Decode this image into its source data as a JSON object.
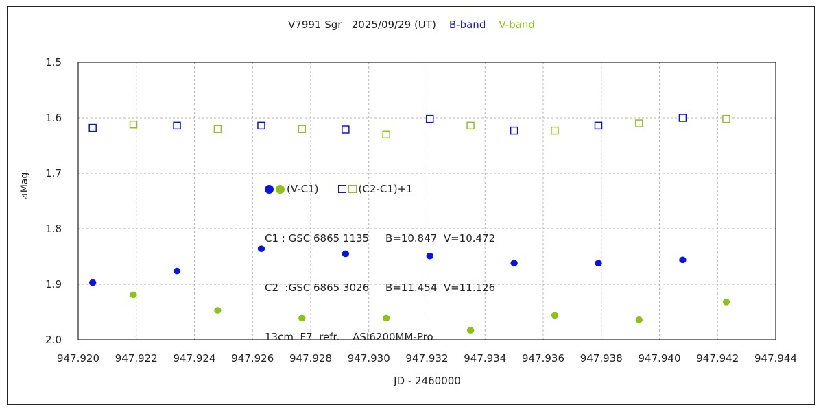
{
  "chart_data": {
    "type": "scatter",
    "title": {
      "main": "V7991 Sgr   2025/09/29 (UT)",
      "b_band": "B-band",
      "v_band": "V-band"
    },
    "xlabel": "JD - 2460000",
    "ylabel": "⊿Mag.",
    "xlim": [
      947.92,
      947.944
    ],
    "ylim": [
      1.5,
      2.0
    ],
    "y_inverted": true,
    "grid": true,
    "x_ticks": [
      "947.920",
      "947.922",
      "947.924",
      "947.926",
      "947.928",
      "947.930",
      "947.932",
      "947.934",
      "947.936",
      "947.938",
      "947.940",
      "947.942",
      "947.944"
    ],
    "y_ticks": [
      "1.5",
      "1.6",
      "1.7",
      "1.8",
      "1.9",
      "2.0"
    ],
    "colors": {
      "b_band": "#0a14e0",
      "v_band": "#8cc21a"
    },
    "series": [
      {
        "name": "(V-C1) B-band",
        "marker": "filled-circle",
        "color": "#0a14e0",
        "x": [
          947.9205,
          947.9234,
          947.9263,
          947.9292,
          947.9321,
          947.935,
          947.9379,
          947.9408
        ],
        "y": [
          1.897,
          1.876,
          1.836,
          1.845,
          1.849,
          1.862,
          1.862,
          1.856
        ]
      },
      {
        "name": "(V-C1) V-band",
        "marker": "filled-circle",
        "color": "#8cc21a",
        "x": [
          947.9219,
          947.9248,
          947.9277,
          947.9306,
          947.9335,
          947.9364,
          947.9393,
          947.9423
        ],
        "y": [
          1.919,
          1.947,
          1.961,
          1.961,
          1.983,
          1.956,
          1.964,
          1.932
        ]
      },
      {
        "name": "(C2-C1)+1 B-band",
        "marker": "open-square",
        "color": "#0a14e0",
        "x": [
          947.9205,
          947.9234,
          947.9263,
          947.9292,
          947.9321,
          947.935,
          947.9379,
          947.9408
        ],
        "y": [
          1.618,
          1.614,
          1.614,
          1.621,
          1.602,
          1.623,
          1.614,
          1.6
        ]
      },
      {
        "name": "(C2-C1)+1 V-band",
        "marker": "open-square",
        "color": "#8cc21a",
        "x": [
          947.9219,
          947.9248,
          947.9277,
          947.9306,
          947.9335,
          947.9364,
          947.9393,
          947.9423
        ],
        "y": [
          1.612,
          1.62,
          1.62,
          1.63,
          1.614,
          1.623,
          1.61,
          1.602
        ]
      }
    ],
    "legend": {
      "vc1_label": "(V-C1)",
      "c2c1_label": "(C2-C1)+1",
      "c1_info": "C1 : GSC 6865 1135     B=10.847  V=10.472",
      "c2_info": "C2  :GSC 6865 3026     B=11.454  V=11.126",
      "instrument": "13cm  F7  refr.    ASI6200MM-Pro"
    }
  }
}
